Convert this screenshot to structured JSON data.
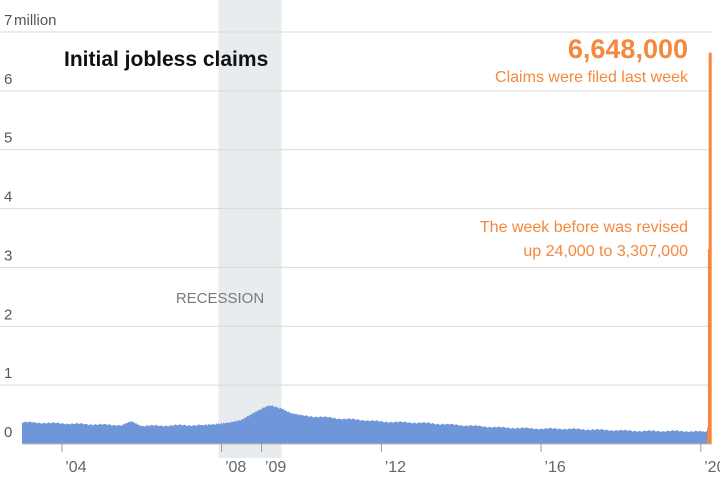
{
  "chart_data": {
    "type": "area",
    "title": "Initial jobless claims",
    "yunit": "million",
    "ylim": [
      0,
      7
    ],
    "yticks": [
      {
        "value": 0,
        "label": "0"
      },
      {
        "value": 1,
        "label": "1"
      },
      {
        "value": 2,
        "label": "2"
      },
      {
        "value": 3,
        "label": "3"
      },
      {
        "value": 4,
        "label": "4"
      },
      {
        "value": 5,
        "label": "5"
      },
      {
        "value": 6,
        "label": "6"
      },
      {
        "value": 7,
        "label": "7"
      }
    ],
    "xlim": [
      2003.0,
      2020.28
    ],
    "xticks": [
      {
        "value": 2004,
        "label": "’04"
      },
      {
        "value": 2008,
        "label": "’08"
      },
      {
        "value": 2009,
        "label": "’09"
      },
      {
        "value": 2012,
        "label": "’12"
      },
      {
        "value": 2016,
        "label": "’16"
      },
      {
        "value": 2020,
        "label": "’20"
      }
    ],
    "grid": true,
    "recession": {
      "start": 2007.92,
      "end": 2009.5,
      "label": "RECESSION"
    },
    "series": [
      {
        "color": "#6f96d8",
        "points": [
          [
            2003.0,
            0.37
          ],
          [
            2003.5,
            0.36
          ],
          [
            2004.0,
            0.35
          ],
          [
            2004.5,
            0.34
          ],
          [
            2005.0,
            0.33
          ],
          [
            2005.5,
            0.32
          ],
          [
            2005.75,
            0.38
          ],
          [
            2006.0,
            0.31
          ],
          [
            2006.5,
            0.31
          ],
          [
            2007.0,
            0.32
          ],
          [
            2007.5,
            0.32
          ],
          [
            2007.9,
            0.34
          ],
          [
            2008.25,
            0.37
          ],
          [
            2008.5,
            0.42
          ],
          [
            2008.75,
            0.5
          ],
          [
            2009.0,
            0.6
          ],
          [
            2009.2,
            0.66
          ],
          [
            2009.5,
            0.6
          ],
          [
            2009.75,
            0.53
          ],
          [
            2010.0,
            0.48
          ],
          [
            2010.5,
            0.46
          ],
          [
            2011.0,
            0.43
          ],
          [
            2011.5,
            0.41
          ],
          [
            2012.0,
            0.38
          ],
          [
            2012.5,
            0.37
          ],
          [
            2013.0,
            0.36
          ],
          [
            2013.5,
            0.34
          ],
          [
            2014.0,
            0.32
          ],
          [
            2014.5,
            0.3
          ],
          [
            2015.0,
            0.28
          ],
          [
            2015.5,
            0.27
          ],
          [
            2016.0,
            0.26
          ],
          [
            2016.5,
            0.26
          ],
          [
            2017.0,
            0.25
          ],
          [
            2017.5,
            0.24
          ],
          [
            2018.0,
            0.23
          ],
          [
            2018.5,
            0.22
          ],
          [
            2019.0,
            0.22
          ],
          [
            2019.5,
            0.22
          ],
          [
            2020.0,
            0.21
          ],
          [
            2020.17,
            0.21
          ]
        ]
      }
    ],
    "bars": [
      {
        "x": 2020.195,
        "value": 0.28,
        "color": "#f4883c"
      },
      {
        "x": 2020.215,
        "value": 3.307,
        "color": "#f4883c"
      },
      {
        "x": 2020.235,
        "value": 6.648,
        "color": "#f4883c"
      }
    ],
    "annotations": [
      {
        "value": "6,648,000",
        "text": "Claims were filed last week",
        "color": "#f4883c"
      },
      {
        "lines": [
          "The week before was revised",
          "up 24,000 to 3,307,000"
        ],
        "color": "#f4883c"
      }
    ]
  }
}
